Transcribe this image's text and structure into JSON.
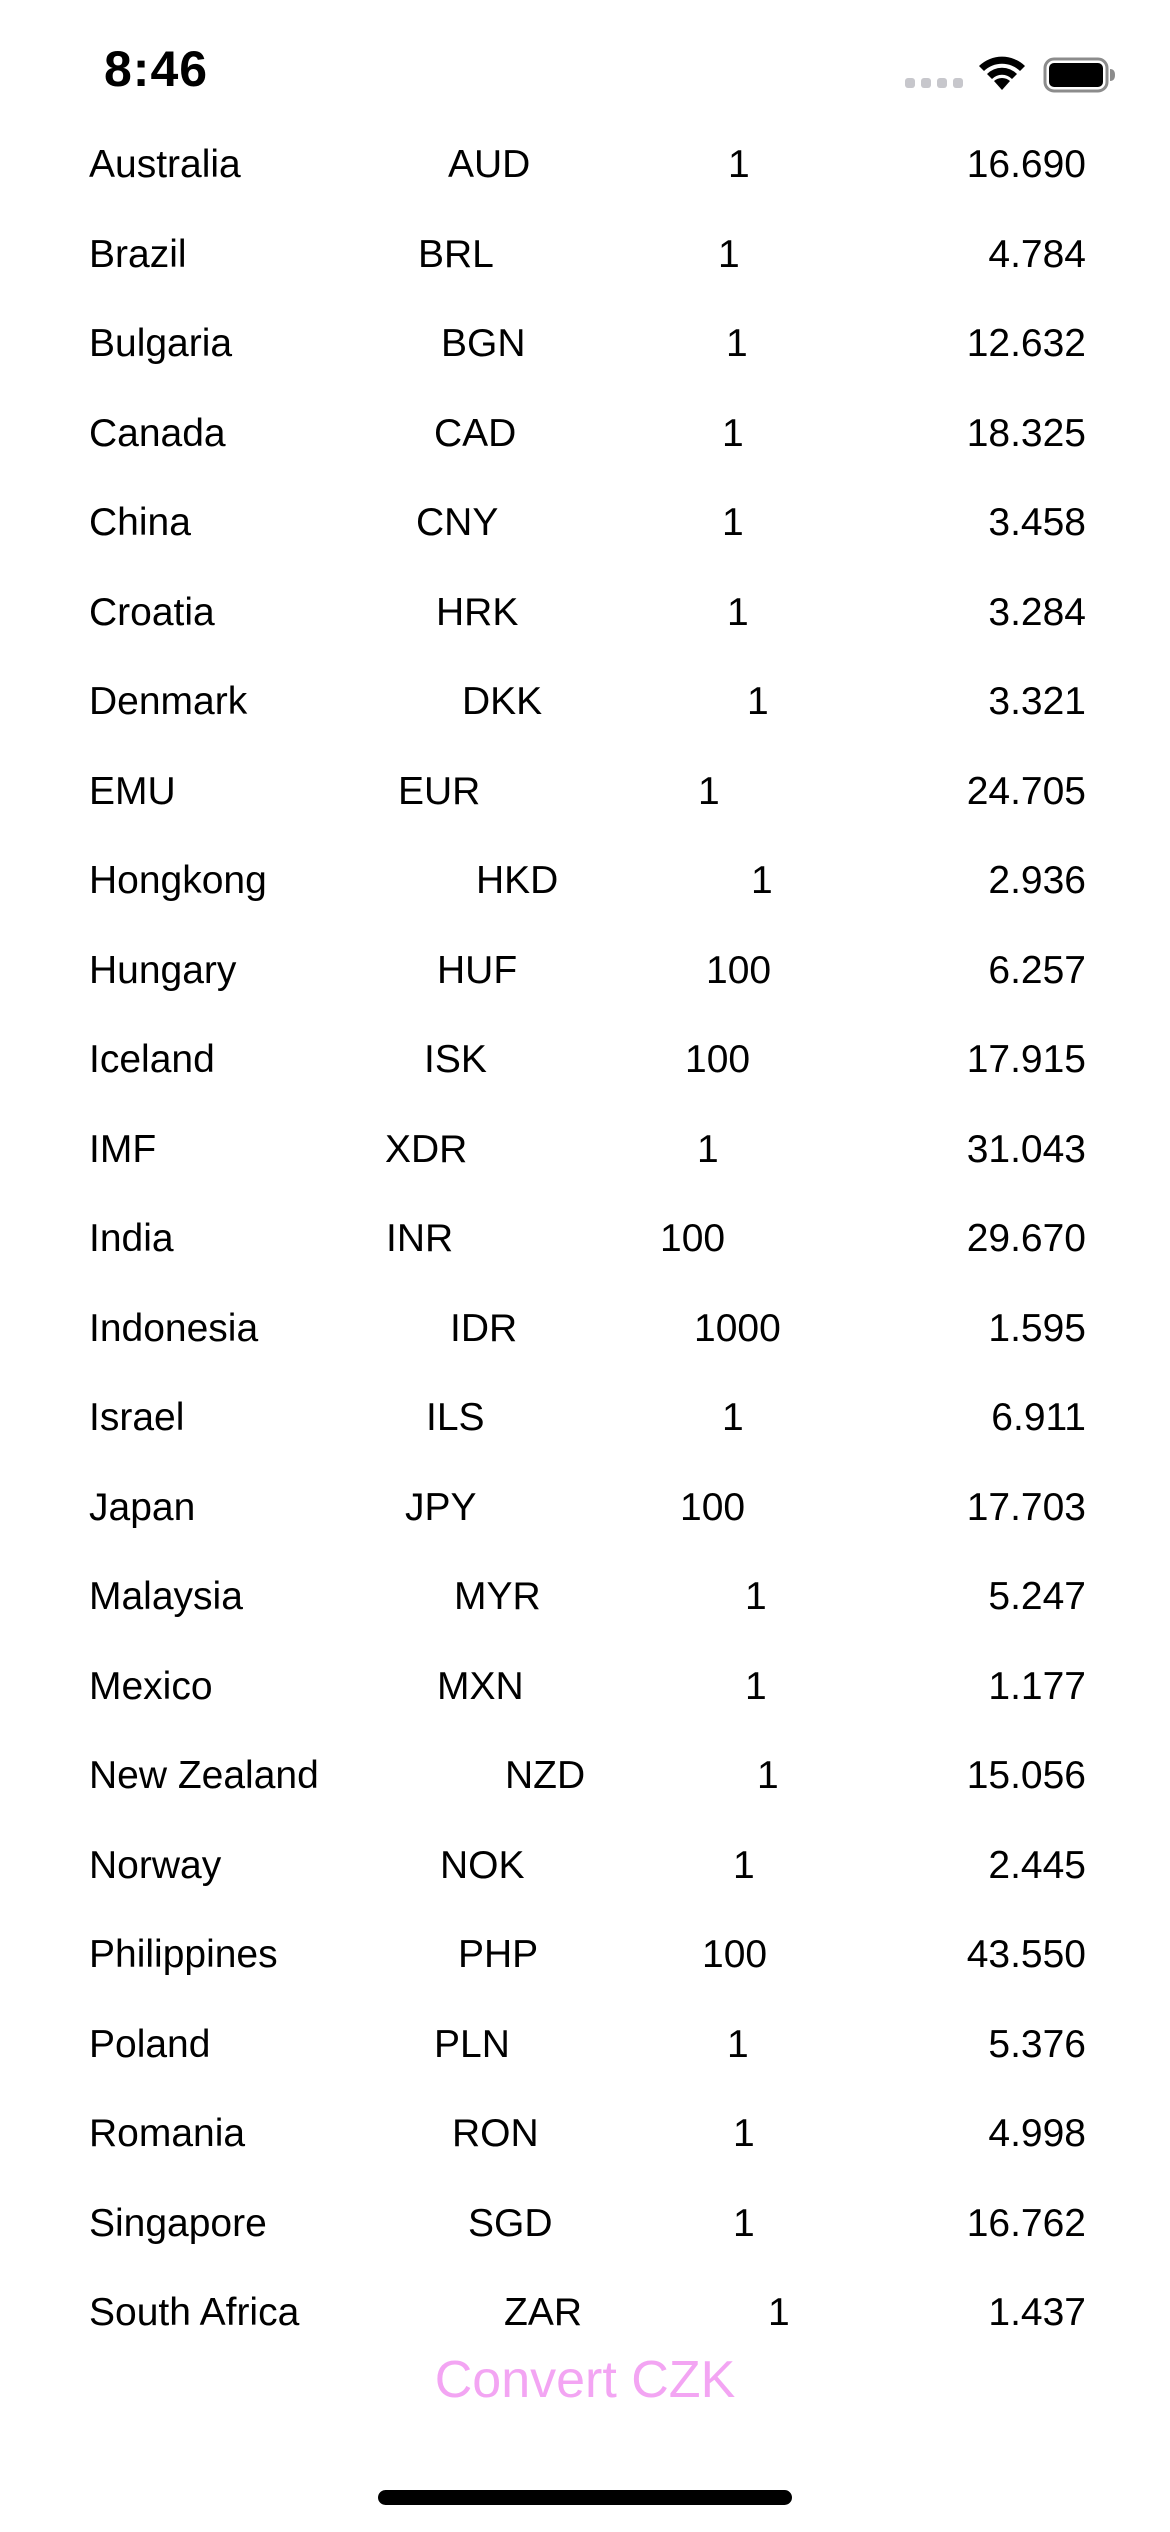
{
  "status_bar": {
    "time": "8:46"
  },
  "rates": [
    {
      "country": "Australia",
      "code": "AUD",
      "amount": "1",
      "rate": "16.690"
    },
    {
      "country": "Brazil",
      "code": "BRL",
      "amount": "1",
      "rate": "4.784"
    },
    {
      "country": "Bulgaria",
      "code": "BGN",
      "amount": "1",
      "rate": "12.632"
    },
    {
      "country": "Canada",
      "code": "CAD",
      "amount": "1",
      "rate": "18.325"
    },
    {
      "country": "China",
      "code": "CNY",
      "amount": "1",
      "rate": "3.458"
    },
    {
      "country": "Croatia",
      "code": "HRK",
      "amount": "1",
      "rate": "3.284"
    },
    {
      "country": "Denmark",
      "code": "DKK",
      "amount": "1",
      "rate": "3.321"
    },
    {
      "country": "EMU",
      "code": "EUR",
      "amount": "1",
      "rate": "24.705"
    },
    {
      "country": "Hongkong",
      "code": "HKD",
      "amount": "1",
      "rate": "2.936"
    },
    {
      "country": "Hungary",
      "code": "HUF",
      "amount": "100",
      "rate": "6.257"
    },
    {
      "country": "Iceland",
      "code": "ISK",
      "amount": "100",
      "rate": "17.915"
    },
    {
      "country": "IMF",
      "code": "XDR",
      "amount": "1",
      "rate": "31.043"
    },
    {
      "country": "India",
      "code": "INR",
      "amount": "100",
      "rate": "29.670"
    },
    {
      "country": "Indonesia",
      "code": "IDR",
      "amount": "1000",
      "rate": "1.595"
    },
    {
      "country": "Israel",
      "code": "ILS",
      "amount": "1",
      "rate": "6.911"
    },
    {
      "country": "Japan",
      "code": "JPY",
      "amount": "100",
      "rate": "17.703"
    },
    {
      "country": "Malaysia",
      "code": "MYR",
      "amount": "1",
      "rate": "5.247"
    },
    {
      "country": "Mexico",
      "code": "MXN",
      "amount": "1",
      "rate": "1.177"
    },
    {
      "country": "New Zealand",
      "code": "NZD",
      "amount": "1",
      "rate": "15.056"
    },
    {
      "country": "Norway",
      "code": "NOK",
      "amount": "1",
      "rate": "2.445"
    },
    {
      "country": "Philippines",
      "code": "PHP",
      "amount": "100",
      "rate": "43.550"
    },
    {
      "country": "Poland",
      "code": "PLN",
      "amount": "1",
      "rate": "5.376"
    },
    {
      "country": "Romania",
      "code": "RON",
      "amount": "1",
      "rate": "4.998"
    },
    {
      "country": "Singapore",
      "code": "SGD",
      "amount": "1",
      "rate": "16.762"
    },
    {
      "country": "South Africa",
      "code": "ZAR",
      "amount": "1",
      "rate": "1.437"
    }
  ],
  "convert_button": {
    "label": "Convert CZK",
    "color": "#f3a5f3"
  }
}
